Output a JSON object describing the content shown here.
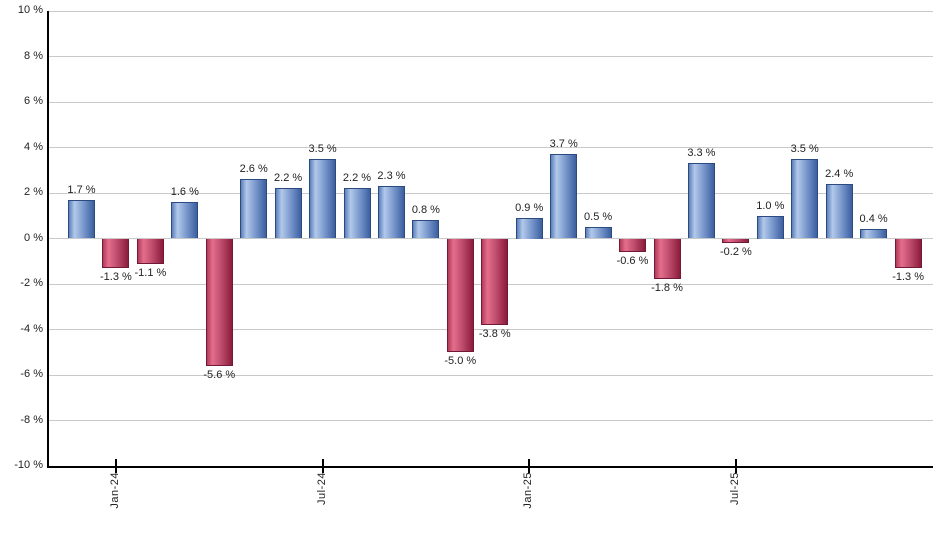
{
  "chart_data": {
    "type": "bar",
    "title": "",
    "xlabel": "",
    "ylabel": "",
    "ylim": [
      -10,
      10
    ],
    "grid": true,
    "legend_position": "none",
    "y_ticks": [
      "10 %",
      "8 %",
      "6 %",
      "4 %",
      "2 %",
      "0 %",
      "-2 %",
      "-4 %",
      "-6 %",
      "-8 %",
      "-10 %"
    ],
    "y_tick_values": [
      10,
      8,
      6,
      4,
      2,
      0,
      -2,
      -4,
      -6,
      -8,
      -10
    ],
    "values": [
      1.7,
      -1.3,
      -1.1,
      1.6,
      -5.6,
      2.6,
      2.2,
      3.5,
      2.2,
      2.3,
      0.8,
      -5.0,
      -3.8,
      0.9,
      3.7,
      0.5,
      -0.6,
      -1.8,
      3.3,
      -0.2,
      1.0,
      3.5,
      2.4,
      0.4,
      -1.3
    ],
    "value_labels": [
      "1.7 %",
      "-1.3 %",
      "-1.1 %",
      "1.6 %",
      "-5.6 %",
      "2.6 %",
      "2.2 %",
      "3.5 %",
      "2.2 %",
      "2.3 %",
      "0.8 %",
      "-5.0 %",
      "-3.8 %",
      "0.9 %",
      "3.7 %",
      "0.5 %",
      "-0.6 %",
      "-1.8 %",
      "3.3 %",
      "-0.2 %",
      "1.0 %",
      "3.5 %",
      "2.4 %",
      "0.4 %",
      "-1.3 %"
    ],
    "x_ticks": [
      {
        "label": "Jan-24",
        "bar_index": 1
      },
      {
        "label": "Jul-24",
        "bar_index": 7
      },
      {
        "label": "Jan-25",
        "bar_index": 13
      },
      {
        "label": "Jul-25",
        "bar_index": 19
      }
    ],
    "colors": {
      "positive_bar": "#5c80bc",
      "positive_bar_light": "#b2c9e9",
      "positive_bar_dark": "#3c5fa0",
      "positive_border": "#2a4a80",
      "negative_bar": "#b23a5a",
      "negative_bar_light": "#e56e8c",
      "negative_bar_dark": "#8c1c3c",
      "negative_border": "#701a38",
      "gridline": "#c9c9c9",
      "axis": "#000000",
      "label_text": "#222222",
      "background": "#ffffff"
    }
  }
}
